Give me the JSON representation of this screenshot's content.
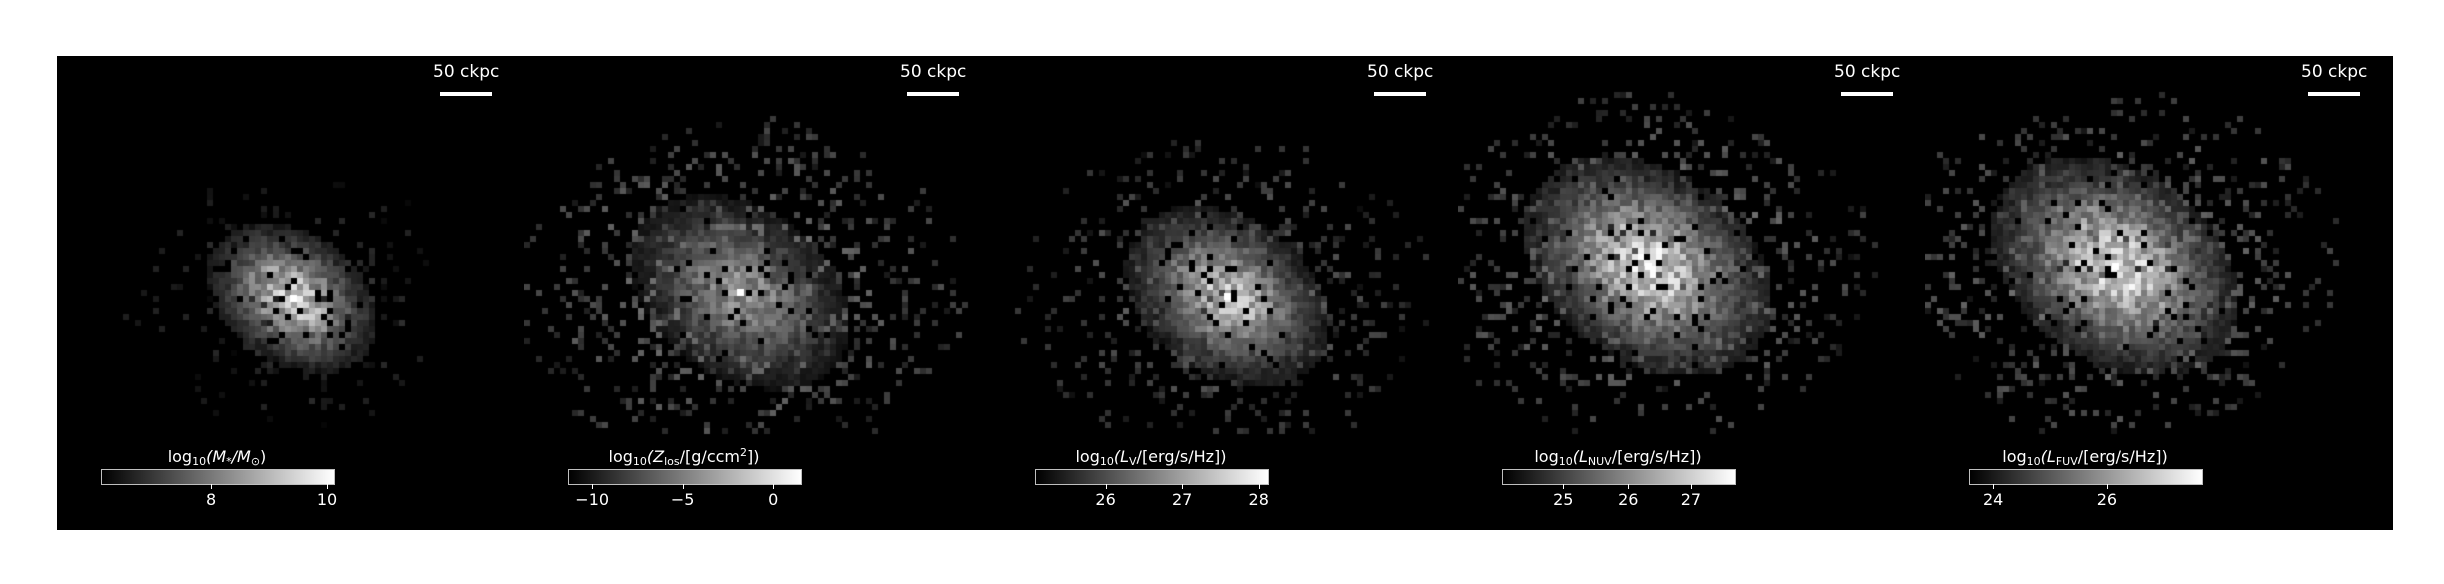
{
  "scalebar_label": "50 ckpc",
  "colormap": "grayscale (black to white)",
  "background_color": "#000000",
  "panels": [
    {
      "quantity": "stellar mass",
      "colorbar_label": {
        "pre": "log",
        "sub1": "10",
        "mid": "(M",
        "sub2": "*",
        "sep": "/M",
        "sub3": "⊙",
        "post": ")"
      },
      "ticks": [
        {
          "label": "8",
          "frac": 0.47
        },
        {
          "label": "10",
          "frac": 0.97
        }
      ]
    },
    {
      "quantity": "line-of-sight metal column density",
      "colorbar_label": {
        "pre": "log",
        "sub1": "10",
        "mid": "(Z",
        "sub2": "los",
        "sep": "/[g/ccm",
        "sup": "2",
        "post": "])"
      },
      "ticks": [
        {
          "label": "−10",
          "frac": 0.1
        },
        {
          "label": "−5",
          "frac": 0.49
        },
        {
          "label": "0",
          "frac": 0.88
        }
      ]
    },
    {
      "quantity": "V-band luminosity",
      "colorbar_label": {
        "pre": "log",
        "sub1": "10",
        "mid": "(L",
        "sub2": "V",
        "sep": "/[erg/s/Hz])",
        "post": ""
      },
      "ticks": [
        {
          "label": "26",
          "frac": 0.3
        },
        {
          "label": "27",
          "frac": 0.63
        },
        {
          "label": "28",
          "frac": 0.96
        }
      ]
    },
    {
      "quantity": "NUV luminosity",
      "colorbar_label": {
        "pre": "log",
        "sub1": "10",
        "mid": "(L",
        "sub2": "NUV",
        "sep": "/[erg/s/Hz])",
        "post": ""
      },
      "ticks": [
        {
          "label": "25",
          "frac": 0.26
        },
        {
          "label": "26",
          "frac": 0.54
        },
        {
          "label": "27",
          "frac": 0.81
        }
      ]
    },
    {
      "quantity": "FUV luminosity",
      "colorbar_label": {
        "pre": "log",
        "sub1": "10",
        "mid": "(L",
        "sub2": "FUV",
        "sep": "/[erg/s/Hz])",
        "post": ""
      },
      "ticks": [
        {
          "label": "24",
          "frac": 0.1
        },
        {
          "label": "26",
          "frac": 0.59
        }
      ]
    }
  ]
}
